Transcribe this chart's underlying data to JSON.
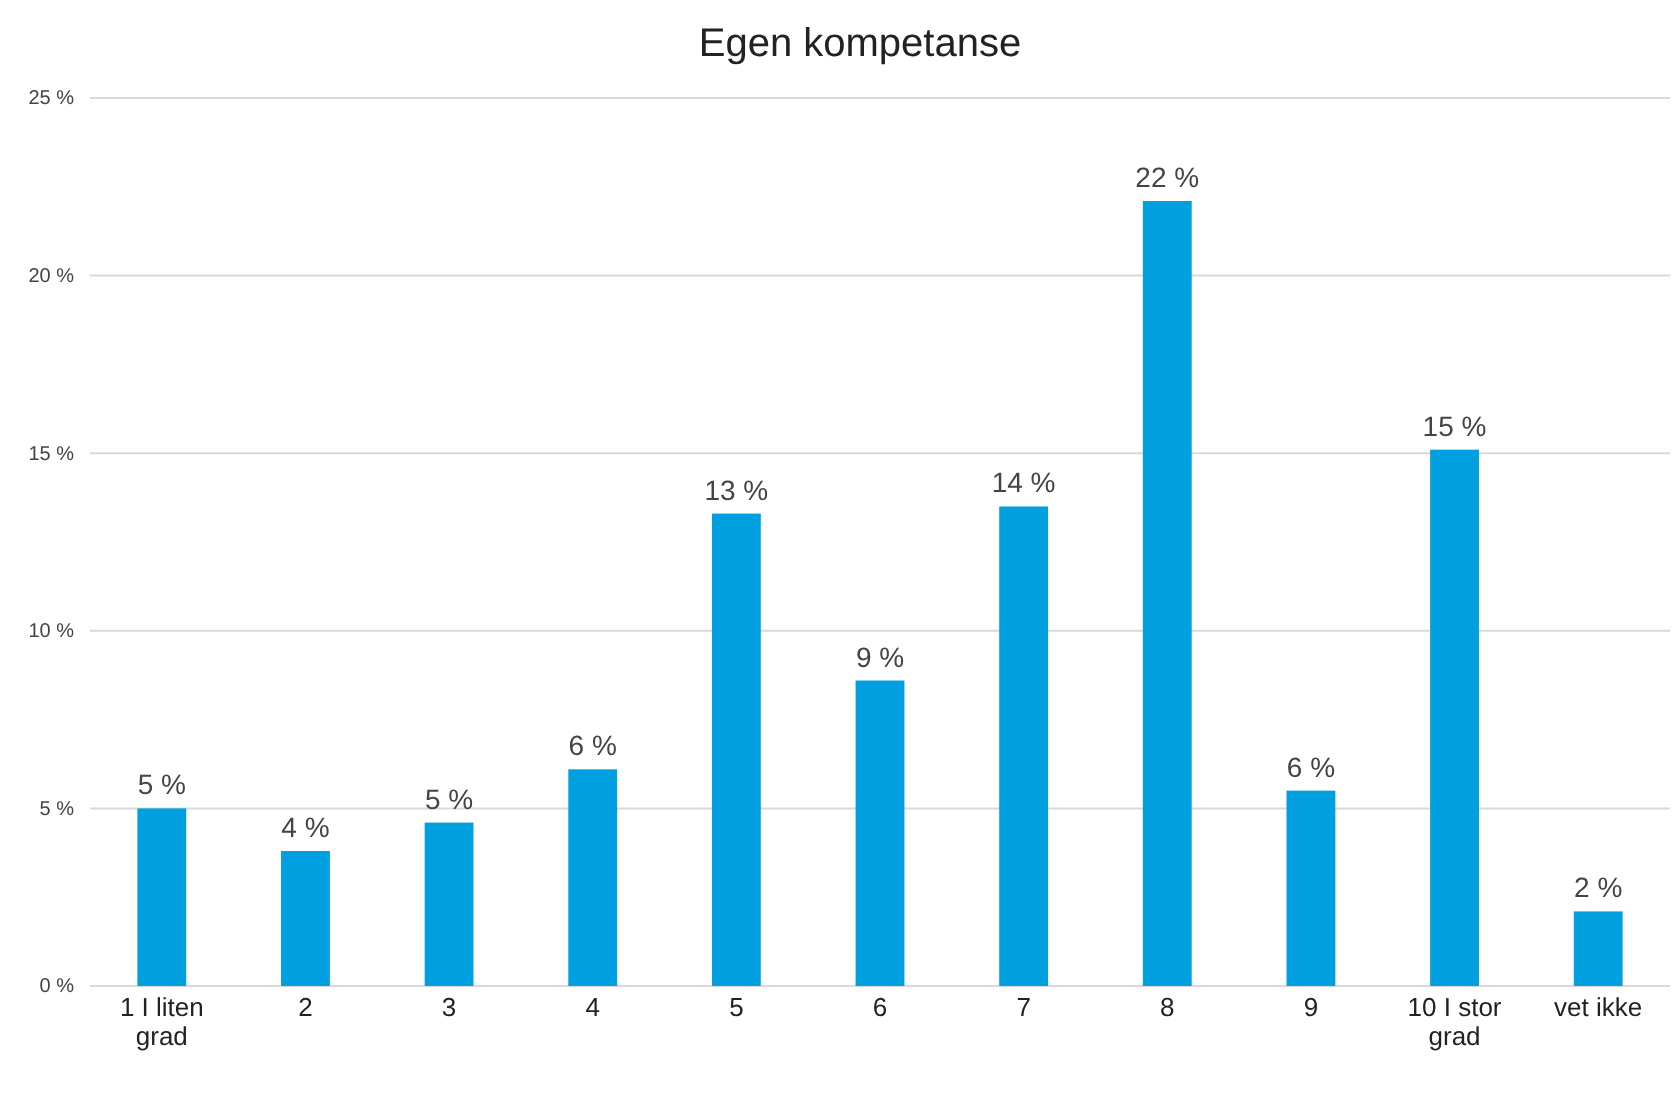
{
  "chart_data": {
    "type": "bar",
    "title": "Egen kompetanse",
    "categories": [
      "1 I liten grad",
      "2",
      "3",
      "4",
      "5",
      "6",
      "7",
      "8",
      "9",
      "10 I stor grad",
      "vet ikke"
    ],
    "values": [
      5.0,
      3.8,
      4.6,
      6.1,
      13.3,
      8.6,
      13.5,
      22.1,
      5.5,
      15.1,
      2.1
    ],
    "value_labels": [
      "5 %",
      "4 %",
      "5 %",
      "6 %",
      "13 %",
      "9 %",
      "14 %",
      "22 %",
      "6 %",
      "15 %",
      "2 %"
    ],
    "color": "#009fdf",
    "ylim": [
      0,
      25
    ],
    "yticks": [
      {
        "value": 0,
        "label": "0 %"
      },
      {
        "value": 5,
        "label": "5 %"
      },
      {
        "value": 10,
        "label": "10 %"
      },
      {
        "value": 15,
        "label": "15 %"
      },
      {
        "value": 20,
        "label": "20 %"
      },
      {
        "value": 25,
        "label": "25 %"
      }
    ],
    "grid": "y"
  }
}
